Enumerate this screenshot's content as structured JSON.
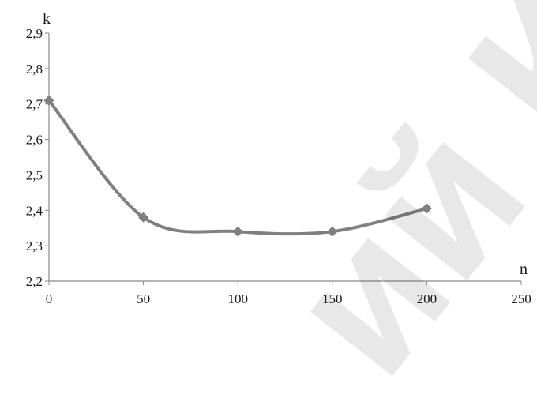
{
  "chart_data": {
    "type": "line",
    "title": "",
    "xlabel": "n",
    "ylabel": "k",
    "x": [
      0,
      50,
      100,
      150,
      200
    ],
    "series": [
      {
        "values": [
          2.71,
          2.38,
          2.34,
          2.34,
          2.405
        ]
      }
    ],
    "xlim": [
      0,
      250
    ],
    "ylim": [
      2.2,
      2.9
    ],
    "xticks": [
      0,
      50,
      100,
      150,
      200,
      250
    ],
    "yticks": [
      2.2,
      2.3,
      2.4,
      2.5,
      2.6,
      2.7,
      2.8,
      2.9
    ],
    "xtick_labels": [
      "0",
      "50",
      "100",
      "150",
      "200",
      "250"
    ],
    "ytick_labels": [
      "2,2",
      "2,3",
      "2,4",
      "2,5",
      "2,6",
      "2,7",
      "2,8",
      "2,9"
    ],
    "grid": false,
    "smooth": true,
    "marker": "diamond",
    "line_color": "#808080",
    "marker_color": "#7f7f7f",
    "axis_color": "#888888"
  },
  "watermark": {
    "text": "ий Ка"
  }
}
